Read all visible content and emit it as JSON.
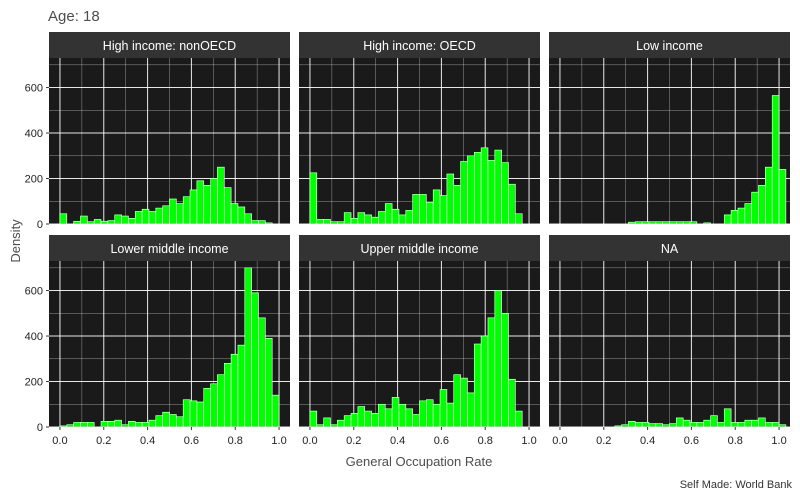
{
  "chart_data": {
    "type": "bar",
    "title": "Age: 18",
    "xlabel": "General Occupation Rate",
    "ylabel": "Density",
    "caption": "Self Made: World Bank",
    "xlim": [
      -0.05,
      1.05
    ],
    "ylim": [
      0,
      730
    ],
    "x_ticks": [
      "0.0",
      "0.2",
      "0.4",
      "0.6",
      "0.8",
      "1.0"
    ],
    "y_ticks": [
      "0",
      "200",
      "400",
      "600"
    ],
    "bin_width": 0.03125,
    "bin_start": 0,
    "grid": true,
    "legend": "none",
    "bar_color": "#00ff00",
    "bar_outline": "#ffffff",
    "panel_background": "#1a1a1a",
    "strip_background": "#333333",
    "panels": [
      {
        "name": "High income: nonOECD",
        "values": [
          45,
          0,
          12,
          35,
          10,
          20,
          12,
          15,
          40,
          35,
          25,
          55,
          65,
          55,
          70,
          80,
          110,
          90,
          120,
          150,
          190,
          170,
          200,
          250,
          160,
          90,
          75,
          45,
          15,
          15,
          5
        ]
      },
      {
        "name": "High income: OECD",
        "values": [
          225,
          20,
          20,
          10,
          10,
          50,
          25,
          50,
          40,
          30,
          55,
          90,
          65,
          40,
          60,
          130,
          130,
          95,
          150,
          125,
          220,
          170,
          275,
          300,
          315,
          335,
          280,
          325,
          270,
          175,
          45
        ]
      },
      {
        "name": "Low income",
        "values": [
          0,
          0,
          0,
          0,
          0,
          0,
          0,
          0,
          0,
          0,
          8,
          10,
          10,
          10,
          10,
          10,
          10,
          10,
          10,
          10,
          0,
          5,
          0,
          0,
          40,
          60,
          70,
          90,
          140,
          170,
          250,
          565,
          240
        ]
      },
      {
        "name": "Lower middle income",
        "values": [
          5,
          10,
          20,
          20,
          20,
          0,
          25,
          25,
          30,
          10,
          25,
          20,
          20,
          30,
          50,
          65,
          55,
          45,
          120,
          115,
          110,
          170,
          190,
          230,
          280,
          320,
          360,
          700,
          590,
          480,
          390,
          140
        ]
      },
      {
        "name": "Upper middle income",
        "values": [
          70,
          10,
          40,
          10,
          30,
          50,
          60,
          90,
          70,
          60,
          100,
          80,
          130,
          100,
          80,
          55,
          115,
          120,
          100,
          165,
          105,
          230,
          215,
          150,
          365,
          400,
          480,
          600,
          500,
          210,
          70
        ]
      },
      {
        "name": "NA",
        "values": [
          0,
          0,
          0,
          0,
          0,
          0,
          0,
          0,
          5,
          10,
          25,
          20,
          20,
          15,
          15,
          10,
          15,
          40,
          30,
          20,
          20,
          30,
          50,
          20,
          80,
          20,
          20,
          30,
          30,
          40,
          20,
          20,
          10
        ]
      }
    ]
  }
}
